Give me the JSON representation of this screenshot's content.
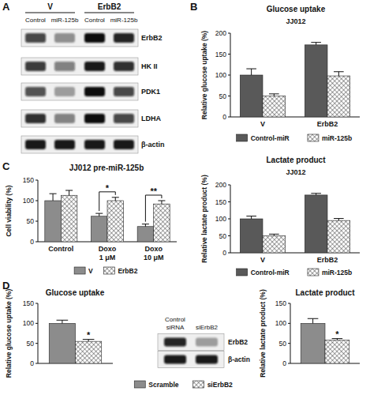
{
  "panel_labels": [
    "A",
    "B",
    "C",
    "D"
  ],
  "blots": [
    {
      "group_labels": [
        "V",
        "ErbB2"
      ],
      "lane_labels": [
        "Control",
        "miR-125b",
        "Control",
        "miR-125b"
      ],
      "rows": [
        {
          "label": "ErbB2",
          "intensity": [
            0.75,
            0.4,
            1,
            0.9
          ]
        },
        {
          "label": "HK II",
          "intensity": [
            0.8,
            0.5,
            0.95,
            0.85
          ]
        },
        {
          "label": "PDK1",
          "intensity": [
            0.7,
            0.35,
            1,
            0.75
          ]
        },
        {
          "label": "LDHA",
          "intensity": [
            0.85,
            0.45,
            1,
            0.75
          ]
        },
        {
          "label": "β-actin",
          "intensity": [
            0.95,
            0.95,
            0.95,
            0.95
          ]
        }
      ]
    },
    {
      "lane_labels": [
        "Control siRNA",
        "siErbB2"
      ],
      "rows": [
        {
          "label": "ErbB2",
          "intensity": [
            0.9,
            0.35
          ]
        },
        {
          "label": "β-actin",
          "intensity": [
            0.95,
            0.95
          ]
        }
      ]
    }
  ],
  "chart_data": [
    {
      "type": "bar",
      "title": "Glucose uptake",
      "subtitle": "JJ012",
      "y_label": "Relative glucose uptake (%)",
      "categories": [
        "V",
        "ErbB2"
      ],
      "series": [
        {
          "name": "Control-miR",
          "color": "#595959",
          "values": [
            100,
            172
          ],
          "errors": [
            15,
            6
          ]
        },
        {
          "name": "miR-125b",
          "color": "#333333",
          "marker": "cross-hatch",
          "values": [
            50,
            98
          ],
          "errors": [
            5,
            10
          ]
        }
      ],
      "ylim": [
        0,
        200
      ],
      "yticks": [
        0,
        50,
        100,
        150,
        200
      ],
      "legend": "bottom"
    },
    {
      "type": "bar",
      "title": "Lactate product",
      "subtitle": "JJ012",
      "y_label": "Relative lactate product (%)",
      "categories": [
        "V",
        "ErbB2"
      ],
      "series": [
        {
          "name": "Control-miR",
          "color": "#595959",
          "values": [
            100,
            170
          ],
          "errors": [
            8,
            5
          ]
        },
        {
          "name": "miR-125b",
          "color": "#333333",
          "marker": "cross-hatch",
          "values": [
            50,
            95
          ],
          "errors": [
            5,
            6
          ]
        }
      ],
      "ylim": [
        0,
        200
      ],
      "yticks": [
        0,
        50,
        100,
        150,
        200
      ],
      "legend": "bottom"
    },
    {
      "type": "bar",
      "title": "JJ012 pre-miR-125b",
      "y_label": "Cell viability (%)",
      "categories": [
        "Control",
        "Doxo 1 μM",
        "Doxo 10 μM"
      ],
      "series": [
        {
          "name": "V",
          "color": "#8c8c8c",
          "values": [
            100,
            62,
            37
          ],
          "errors": [
            17,
            7,
            6
          ]
        },
        {
          "name": "ErbB2",
          "color": "#333333",
          "marker": "cross-hatch",
          "values": [
            113,
            100,
            92
          ],
          "errors": [
            12,
            8,
            8
          ]
        }
      ],
      "ylim": [
        0,
        150
      ],
      "yticks": [
        0,
        50,
        100,
        150
      ],
      "legend": "bottom",
      "annotations": [
        {
          "text": "*",
          "category": "Doxo 1 μM",
          "series": "ErbB2"
        },
        {
          "text": "**",
          "category": "Doxo 10 μM",
          "series": "ErbB2"
        }
      ]
    },
    {
      "type": "bar",
      "title": "Glucose uptake",
      "y_label": "Relative glucose uptake (%)",
      "categories": [
        null
      ],
      "series": [
        {
          "name": "Scramble",
          "color": "#8c8c8c",
          "values": [
            100
          ],
          "errors": [
            8
          ]
        },
        {
          "name": "siErbB2",
          "color": "#333333",
          "marker": "cross-hatch",
          "values": [
            55
          ],
          "errors": [
            5
          ]
        }
      ],
      "ylim": [
        0,
        150
      ],
      "yticks": [
        0,
        50,
        100,
        150
      ],
      "annotations": [
        {
          "text": "*",
          "category": null,
          "series": "siErbB2"
        }
      ]
    },
    {
      "type": "bar",
      "title": "Lactate product",
      "y_label": "Relative lactate product (%)",
      "categories": [
        null
      ],
      "series": [
        {
          "name": "Scramble",
          "color": "#8c8c8c",
          "values": [
            100
          ],
          "errors": [
            12
          ]
        },
        {
          "name": "siErbB2",
          "color": "#333333",
          "marker": "cross-hatch",
          "values": [
            58
          ],
          "errors": [
            4
          ]
        }
      ],
      "ylim": [
        0,
        150
      ],
      "yticks": [
        0,
        50,
        100,
        150
      ],
      "legend": "bottom",
      "annotations": [
        {
          "text": "*",
          "category": null,
          "series": "siErbB2"
        }
      ]
    }
  ]
}
